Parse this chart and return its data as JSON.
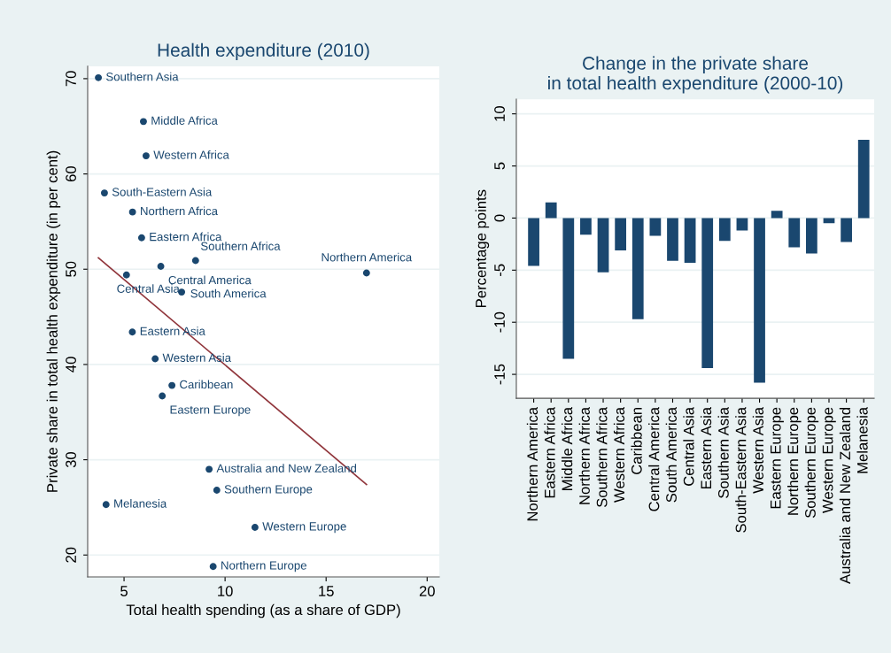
{
  "chart_data": [
    {
      "type": "scatter",
      "title": "Health expenditure (2010)",
      "xlabel": "Total health spending (as a share of GDP)",
      "ylabel": "Private share in total health expenditure (in per cent)",
      "series": [
        {
          "type": "scatter",
          "color": "#1a476f",
          "marker": "circle",
          "x": [
            3.73,
            5.96,
            6.09,
            4.03,
            5.42,
            5.87,
            6.82,
            8.54,
            17.0,
            5.12,
            7.85,
            5.41,
            6.54,
            7.37,
            6.89,
            9.21,
            9.59,
            4.11,
            11.48,
            9.41
          ],
          "values": [
            70.1,
            65.5,
            61.9,
            58.0,
            56.0,
            53.3,
            50.3,
            50.9,
            49.6,
            49.4,
            47.6,
            43.4,
            40.6,
            37.8,
            36.7,
            29.0,
            26.8,
            25.3,
            22.9,
            18.8
          ]
        },
        {
          "type": "line",
          "color": "#90353b",
          "x": [
            3.73,
            17.0
          ],
          "values": [
            51.2,
            27.4
          ]
        }
      ],
      "annotations": [
        {
          "text": "Southern Asia",
          "x": 3.73,
          "y": 70.1
        },
        {
          "text": "Middle Africa",
          "x": 5.96,
          "y": 65.5
        },
        {
          "text": "Western Africa",
          "x": 6.09,
          "y": 61.9
        },
        {
          "text": "South-Eastern Asia",
          "x": 4.03,
          "y": 58.0
        },
        {
          "text": "Northern Africa",
          "x": 5.42,
          "y": 56.0
        },
        {
          "text": "Eastern Africa",
          "x": 5.87,
          "y": 53.3
        },
        {
          "text": "Central America",
          "x": 6.82,
          "y": 50.3
        },
        {
          "text": "Southern Africa",
          "x": 8.54,
          "y": 50.9
        },
        {
          "text": "Northern America",
          "x": 17.0,
          "y": 49.6
        },
        {
          "text": "Central Asia",
          "x": 5.12,
          "y": 49.4
        },
        {
          "text": "South America",
          "x": 7.85,
          "y": 47.6
        },
        {
          "text": "Eastern Asia",
          "x": 5.41,
          "y": 43.4
        },
        {
          "text": "Western Asia",
          "x": 6.54,
          "y": 40.6
        },
        {
          "text": "Caribbean",
          "x": 7.37,
          "y": 37.8
        },
        {
          "text": "Eastern Europe",
          "x": 6.89,
          "y": 36.7
        },
        {
          "text": "Australia and New Zealand",
          "x": 9.21,
          "y": 29.0
        },
        {
          "text": "Southern Europe",
          "x": 9.59,
          "y": 26.8
        },
        {
          "text": "Melanesia",
          "x": 4.11,
          "y": 25.3
        },
        {
          "text": "Western Europe",
          "x": 11.48,
          "y": 22.9
        },
        {
          "text": "Northern Europe",
          "x": 9.41,
          "y": 18.8
        }
      ],
      "xlim": [
        3.2,
        20.6
      ],
      "ylim": [
        17.7,
        71.3
      ],
      "xticks": [
        5,
        10,
        15,
        20
      ],
      "yticks": [
        20,
        30,
        40,
        50,
        60,
        70
      ],
      "grid": "y"
    },
    {
      "type": "bar",
      "title": "Change in the private share\nin total health expenditure (2000-10)",
      "ylabel": "Percentage points",
      "categories": [
        "Northern America",
        "Eastern Africa",
        "Middle Africa",
        "Northern Africa",
        "Southern Africa",
        "Western Africa",
        "Caribbean",
        "Central America",
        "South America",
        "Central Asia",
        "Eastern Asia",
        "Southern Asia",
        "South-Eastern Asia",
        "Western Asia",
        "Eastern Europe",
        "Northern Europe",
        "Southern Europe",
        "Western Europe",
        "Australia and New Zealand",
        "Melanesia"
      ],
      "values": [
        -4.6,
        1.5,
        -13.5,
        -1.6,
        -5.2,
        -3.1,
        -9.7,
        -1.7,
        -4.1,
        -4.3,
        -14.4,
        -2.2,
        -1.2,
        -15.8,
        0.7,
        -2.8,
        -3.4,
        -0.5,
        -2.3,
        7.5
      ],
      "color": "#1a476f",
      "ylim": [
        -17.3,
        11.4
      ],
      "yticks": [
        {
          "value": -15,
          "label": "-15"
        },
        {
          "value": -10,
          "label": "-10"
        },
        {
          "value": -5,
          "label": "-5"
        },
        0,
        5,
        10
      ],
      "grid": "y"
    }
  ]
}
